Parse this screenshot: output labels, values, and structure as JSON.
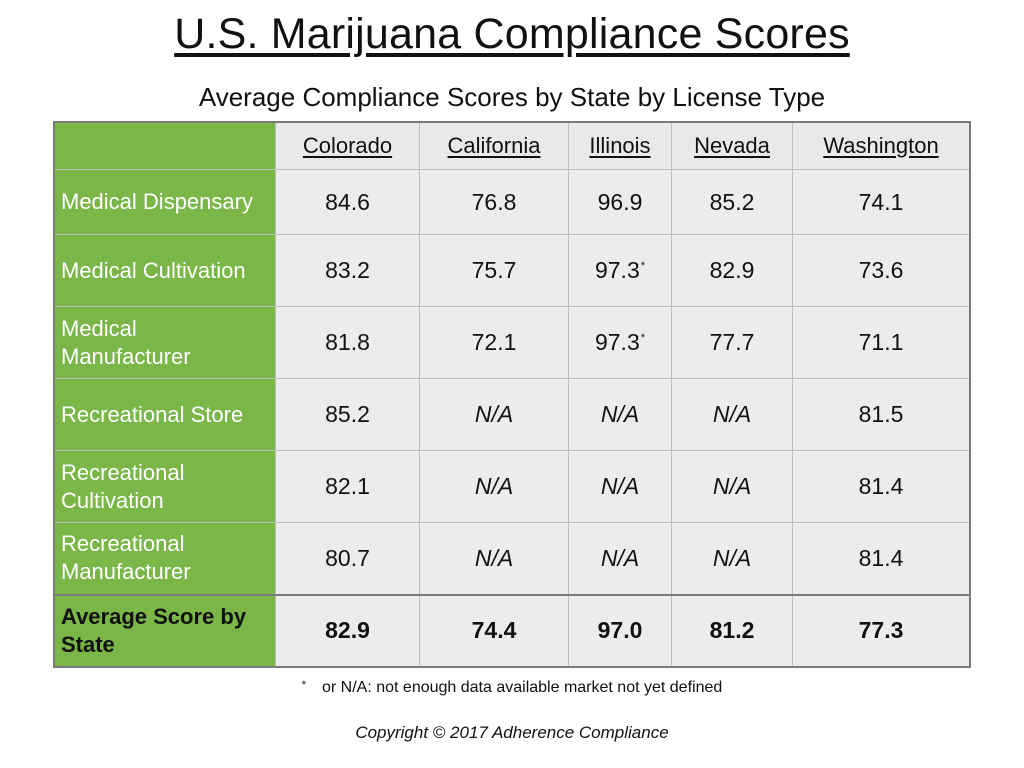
{
  "title": "U.S. Marijuana Compliance Scores",
  "subtitle": "Average Compliance Scores by State by License Type",
  "chart_data": {
    "type": "table",
    "title": "U.S. Marijuana Compliance Scores",
    "subtitle": "Average Compliance Scores by State by License Type",
    "columns": [
      "Colorado",
      "California",
      "Illinois",
      "Nevada",
      "Washington"
    ],
    "rows": [
      {
        "label": "Medical Dispensary",
        "values": [
          "84.6",
          "76.8",
          "96.9",
          "85.2",
          "74.1"
        ],
        "starred": [
          false,
          false,
          false,
          false,
          false
        ]
      },
      {
        "label": "Medical Cultivation",
        "values": [
          "83.2",
          "75.7",
          "97.3",
          "82.9",
          "73.6"
        ],
        "starred": [
          false,
          false,
          true,
          false,
          false
        ]
      },
      {
        "label": "Medical Manufacturer",
        "values": [
          "81.8",
          "72.1",
          "97.3",
          "77.7",
          "71.1"
        ],
        "starred": [
          false,
          false,
          true,
          false,
          false
        ]
      },
      {
        "label": "Recreational Store",
        "values": [
          "85.2",
          "N/A",
          "N/A",
          "N/A",
          "81.5"
        ],
        "starred": [
          false,
          false,
          false,
          false,
          false
        ]
      },
      {
        "label": "Recreational Cultivation",
        "values": [
          "82.1",
          "N/A",
          "N/A",
          "N/A",
          "81.4"
        ],
        "starred": [
          false,
          false,
          false,
          false,
          false
        ]
      },
      {
        "label": "Recreational Manufacturer",
        "values": [
          "80.7",
          "N/A",
          "N/A",
          "N/A",
          "81.4"
        ],
        "starred": [
          false,
          false,
          false,
          false,
          false
        ]
      }
    ],
    "summary_row": {
      "label": "Average Score by State",
      "values": [
        "82.9",
        "74.4",
        "97.0",
        "81.2",
        "77.3"
      ]
    }
  },
  "footnote": {
    "marker": "*",
    "text": "or N/A:  not enough data available market not yet defined"
  },
  "copyright": "Copyright © 2017 Adherence Compliance",
  "colors": {
    "header_green": "#7ab648",
    "cell_gray": "#ececec",
    "border": "#7a7a7a"
  }
}
